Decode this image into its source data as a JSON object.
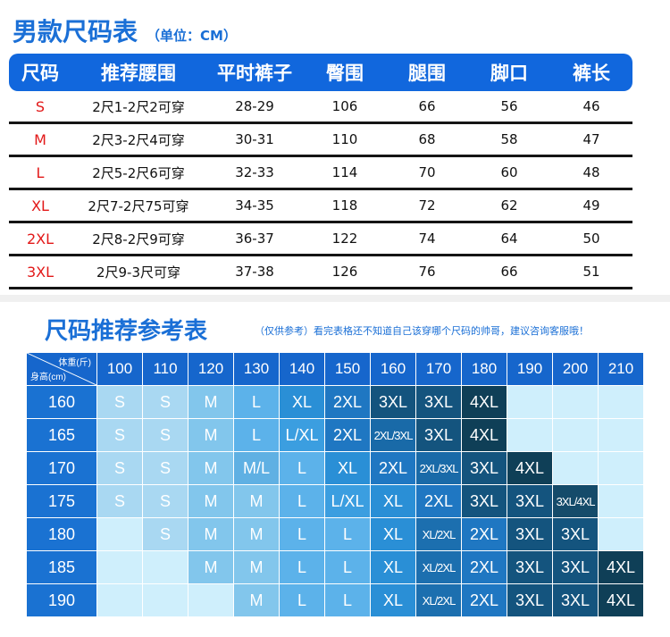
{
  "top": {
    "title": "男款尺码表",
    "unit": "（单位：CM）",
    "headers": [
      "尺码",
      "推荐腰围",
      "平时裤子",
      "臀围",
      "腿围",
      "脚口",
      "裤长"
    ],
    "rows": [
      [
        "S",
        "2尺1-2尺2可穿",
        "28-29",
        "106",
        "66",
        "56",
        "46"
      ],
      [
        "M",
        "2尺3-2尺4可穿",
        "30-31",
        "110",
        "68",
        "58",
        "47"
      ],
      [
        "L",
        "2尺5-2尺6可穿",
        "32-33",
        "114",
        "70",
        "60",
        "48"
      ],
      [
        "XL",
        "2尺7-2尺75可穿",
        "34-35",
        "118",
        "72",
        "62",
        "49"
      ],
      [
        "2XL",
        "2尺8-2尺9可穿",
        "36-37",
        "122",
        "74",
        "64",
        "50"
      ],
      [
        "3XL",
        "2尺9-3尺可穿",
        "37-38",
        "126",
        "76",
        "66",
        "51"
      ]
    ]
  },
  "reference": {
    "title": "尺码推荐参考表",
    "note": "（仅供参考）看完表格还不知道自己该穿哪个尺码的帅哥，建议咨询客服哦！",
    "corner_weight": "体重(斤)",
    "corner_height": "身高(cm)",
    "weights": [
      "100",
      "110",
      "120",
      "130",
      "140",
      "150",
      "160",
      "170",
      "180",
      "190",
      "200",
      "210"
    ],
    "rows": [
      {
        "height": "160",
        "cells": [
          "S",
          "S",
          "M",
          "L",
          "XL",
          "2XL",
          "3XL",
          "3XL",
          "4XL",
          "",
          "",
          ""
        ]
      },
      {
        "height": "165",
        "cells": [
          "S",
          "S",
          "M",
          "L",
          "L/XL",
          "2XL",
          "2XL/3XL",
          "3XL",
          "4XL",
          "",
          "",
          ""
        ]
      },
      {
        "height": "170",
        "cells": [
          "S",
          "S",
          "M",
          "M/L",
          "L",
          "XL",
          "2XL",
          "2XL/3XL",
          "3XL",
          "4XL",
          "",
          ""
        ]
      },
      {
        "height": "175",
        "cells": [
          "S",
          "S",
          "M",
          "M",
          "L",
          "L/XL",
          "XL",
          "2XL",
          "3XL",
          "3XL",
          "3XL/4XL",
          ""
        ]
      },
      {
        "height": "180",
        "cells": [
          "",
          "S",
          "M",
          "M",
          "L",
          "L",
          "XL",
          "XL/2XL",
          "2XL",
          "3XL",
          "3XL",
          ""
        ]
      },
      {
        "height": "185",
        "cells": [
          "",
          "",
          "M",
          "M",
          "L",
          "L",
          "XL",
          "XL/2XL",
          "2XL",
          "3XL",
          "3XL",
          "4XL"
        ]
      },
      {
        "height": "190",
        "cells": [
          "",
          "",
          "",
          "M",
          "L",
          "L",
          "XL",
          "XL/2XL",
          "2XL",
          "3XL",
          "3XL",
          "4XL"
        ]
      }
    ],
    "colors": {
      "empty": "#cfeffc",
      "S": "#a9d8f2",
      "M": "#82c6ec",
      "M/L": "#5fb0e3",
      "L": "#5cb2ea",
      "L/XL": "#3b9ee0",
      "XL": "#2a8fd6",
      "2XL": "#1f77c2",
      "2XL/3XL": "#196aa8",
      "XL/2XL": "#1c6faf",
      "3XL": "#14547e",
      "3XL/4XL": "#154b6a",
      "4XL": "#0f3f57"
    }
  }
}
